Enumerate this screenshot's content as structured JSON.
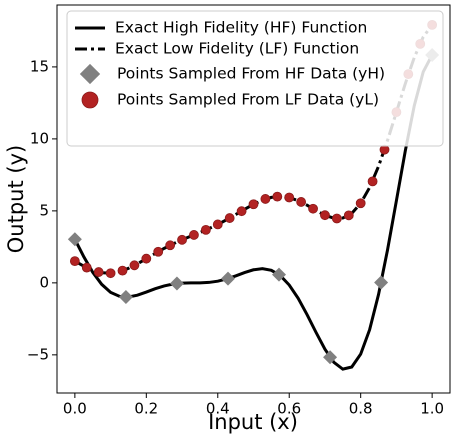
{
  "chart_data": {
    "type": "line",
    "xlabel": "Input (x)",
    "ylabel": "Output (y)",
    "xlim": [
      -0.05,
      1.05
    ],
    "ylim": [
      -7.65,
      19.3
    ],
    "xticks": [
      {
        "value": 0,
        "label": "0.0"
      },
      {
        "value": 0.2,
        "label": "0.2"
      },
      {
        "value": 0.4,
        "label": "0.4"
      },
      {
        "value": 0.6,
        "label": "0.6"
      },
      {
        "value": 0.8,
        "label": "0.8"
      },
      {
        "value": 1,
        "label": "1.0"
      }
    ],
    "yticks": [
      {
        "value": -5,
        "label": "−5"
      },
      0,
      5,
      10,
      15
    ],
    "legend": "upper left",
    "series": [
      {
        "name": "Exact High Fidelity (HF) Function",
        "color": "#000000",
        "style": "solid",
        "x": [
          0,
          0.025,
          0.05,
          0.075,
          0.1,
          0.125,
          0.15,
          0.175,
          0.2,
          0.225,
          0.25,
          0.275,
          0.3,
          0.325,
          0.35,
          0.375,
          0.4,
          0.425,
          0.45,
          0.475,
          0.5,
          0.525,
          0.55,
          0.575,
          0.6,
          0.625,
          0.65,
          0.675,
          0.7,
          0.725,
          0.75,
          0.775,
          0.8,
          0.825,
          0.85,
          0.875,
          0.9,
          0.925,
          0.95,
          0.975,
          1
        ],
        "values": [
          3.027,
          1.813,
          0.738,
          -0.1,
          -0.657,
          -0.935,
          -0.978,
          -0.854,
          -0.64,
          -0.407,
          -0.21,
          -0.079,
          -0.016,
          0,
          0.002,
          0.03,
          0.115,
          0.27,
          0.483,
          0.717,
          0.909,
          0.986,
          0.871,
          0.503,
          -0.149,
          -1.074,
          -2.209,
          -3.439,
          -4.606,
          -5.522,
          -5.993,
          -5.845,
          -4.949,
          -3.254,
          -0.799,
          2.272,
          5.712,
          9.187,
          12.303,
          14.648,
          15.83
        ]
      },
      {
        "name": "Exact Low Fidelity (LF) Function",
        "color": "#000000",
        "style": "dashdot",
        "x": [
          0,
          0.025,
          0.05,
          0.075,
          0.1,
          0.125,
          0.15,
          0.175,
          0.2,
          0.225,
          0.25,
          0.275,
          0.3,
          0.325,
          0.35,
          0.375,
          0.4,
          0.425,
          0.45,
          0.475,
          0.5,
          0.525,
          0.55,
          0.575,
          0.6,
          0.625,
          0.65,
          0.675,
          0.7,
          0.725,
          0.75,
          0.775,
          0.8,
          0.825,
          0.85,
          0.875,
          0.9,
          0.925,
          0.95,
          0.975,
          1
        ],
        "values": [
          1.514,
          1.157,
          0.869,
          0.7,
          0.671,
          0.782,
          1.011,
          1.323,
          1.68,
          2.046,
          2.395,
          2.71,
          2.992,
          3.25,
          3.501,
          3.765,
          4.058,
          4.385,
          4.742,
          5.109,
          5.455,
          5.743,
          5.936,
          6.002,
          5.925,
          5.713,
          5.395,
          5.03,
          4.697,
          4.489,
          4.503,
          4.827,
          5.525,
          6.623,
          8.1,
          9.886,
          11.856,
          13.844,
          15.652,
          17.074,
          17.915
        ]
      },
      {
        "name": "Points Sampled From HF Data (yH)",
        "color": "#808080",
        "style": "diamond",
        "x": [
          0,
          0.1429,
          0.2857,
          0.4286,
          0.5714,
          0.7143,
          0.8571,
          1
        ],
        "values": [
          3.03,
          -0.986,
          -0.044,
          0.297,
          0.573,
          -5.171,
          0.025,
          15.83
        ]
      },
      {
        "name": "Points Sampled From LF Data (yL)",
        "color": "#b22222",
        "style": "circle",
        "x": [
          0,
          0.0333,
          0.0667,
          0.1,
          0.1333,
          0.1667,
          0.2,
          0.2333,
          0.2667,
          0.3,
          0.3333,
          0.3667,
          0.4,
          0.4333,
          0.4667,
          0.5,
          0.5333,
          0.5667,
          0.6,
          0.6333,
          0.6667,
          0.7,
          0.7333,
          0.7667,
          0.8,
          0.8333,
          0.8667,
          0.9,
          0.9333,
          0.9667,
          1
        ],
        "values": [
          1.51,
          1.06,
          0.75,
          0.67,
          0.85,
          1.22,
          1.68,
          2.16,
          2.61,
          2.99,
          3.33,
          3.68,
          4.06,
          4.5,
          4.98,
          5.46,
          5.83,
          5.99,
          5.93,
          5.62,
          5.15,
          4.7,
          4.47,
          4.69,
          5.53,
          7.05,
          9.25,
          11.86,
          14.5,
          16.6,
          17.92
        ]
      }
    ]
  }
}
